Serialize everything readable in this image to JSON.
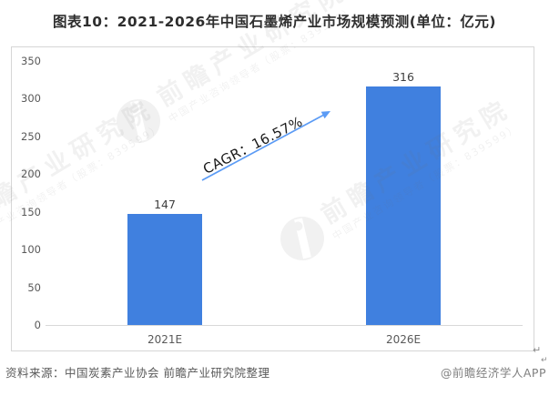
{
  "title": "图表10：2021-2026年中国石墨烯产业市场规模预测(单位：亿元)",
  "chart_data": {
    "type": "bar",
    "title": "图表10：2021-2026年中国石墨烯产业市场规模预测",
    "unit": "亿元",
    "categories": [
      "2021E",
      "2026E"
    ],
    "values": [
      147,
      316
    ],
    "ylim": [
      0,
      350
    ],
    "yticks": [
      0,
      50,
      100,
      150,
      200,
      250,
      300,
      350
    ],
    "grid": false,
    "legend": false,
    "bar_color": "#4080DF",
    "annotation": {
      "text": "CAGR：16.57%",
      "arrow_color": "#5B9BF5"
    }
  },
  "watermark": {
    "brand_large": "前瞻产业研究院",
    "brand_small": "中国产业咨询领导者（股票：839599）"
  },
  "footer": {
    "source": "资料来源：中国炭素产业协会 前瞻产业研究院整理",
    "credit": "@前瞻经济学人APP"
  },
  "editor_marks": {
    "return_mark": "↵"
  }
}
